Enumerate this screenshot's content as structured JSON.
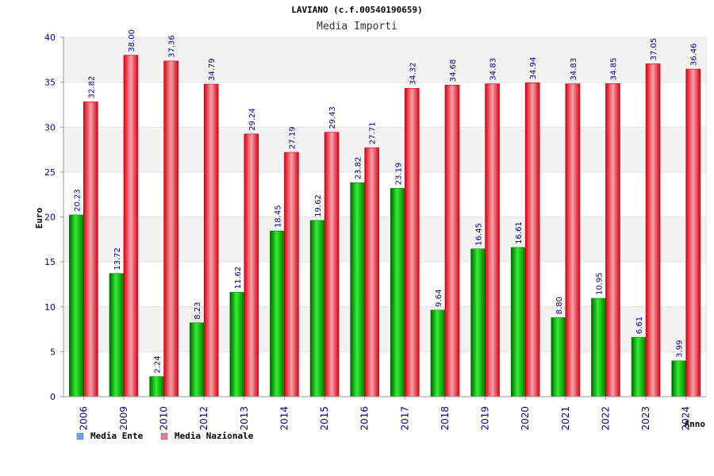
{
  "chart_data": {
    "type": "bar",
    "title": "LAVIANO (c.f.00540190659)",
    "subtitle": "Media Importi",
    "xlabel": "Anno",
    "ylabel": "Euro",
    "ylim": [
      0,
      40
    ],
    "yticks": [
      "0",
      "5",
      "10",
      "15",
      "20",
      "25",
      "30",
      "35",
      "40"
    ],
    "grid": "horizontal bands",
    "legend_position": "bottom-left",
    "categories": [
      "2006",
      "2009",
      "2010",
      "2012",
      "2013",
      "2014",
      "2015",
      "2016",
      "2017",
      "2018",
      "2019",
      "2020",
      "2021",
      "2022",
      "2023",
      "2024"
    ],
    "series": [
      {
        "name": "Media Ente",
        "color": "#00aa00",
        "values": [
          20.23,
          13.72,
          2.24,
          8.23,
          11.62,
          18.45,
          19.62,
          23.82,
          23.19,
          9.64,
          16.45,
          16.61,
          8.8,
          10.95,
          6.61,
          3.99
        ],
        "labels": [
          "20.23",
          "13.72",
          "2.24",
          "8.23",
          "11.62",
          "18.45",
          "19.62",
          "23.82",
          "23.19",
          "9.64",
          "16.45",
          "16.61",
          "8.80",
          "10.95",
          "6.61",
          "3.99"
        ]
      },
      {
        "name": "Media Nazionale",
        "color": "#ee1122",
        "values": [
          32.82,
          38.0,
          37.36,
          34.79,
          29.24,
          27.19,
          29.43,
          27.71,
          34.32,
          34.68,
          34.83,
          34.94,
          34.83,
          34.85,
          37.05,
          36.46
        ],
        "labels": [
          "32.82",
          "38.00",
          "37.36",
          "34.79",
          "29.24",
          "27.19",
          "29.43",
          "27.71",
          "34.32",
          "34.68",
          "34.83",
          "34.94",
          "34.83",
          "34.85",
          "37.05",
          "36.46"
        ]
      }
    ],
    "legend_swatch_colors": [
      "#6aa6e6",
      "#e07aa0"
    ]
  }
}
